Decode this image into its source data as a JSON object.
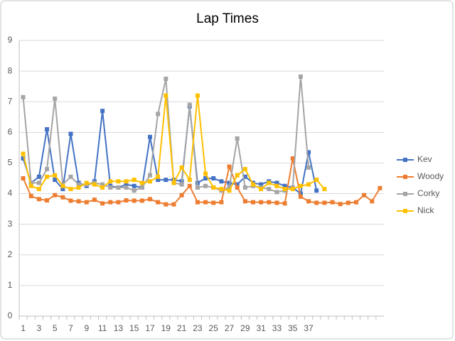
{
  "chart_data": {
    "type": "line",
    "title": "Lap Times",
    "categories": [
      1,
      null,
      3,
      null,
      5,
      null,
      7,
      null,
      9,
      null,
      11,
      null,
      13,
      null,
      15,
      null,
      17,
      null,
      19,
      null,
      21,
      null,
      23,
      null,
      25,
      null,
      27,
      null,
      29,
      null,
      31,
      null,
      33,
      null,
      35,
      null,
      37,
      null,
      null,
      null,
      null,
      null,
      null,
      null,
      null,
      null
    ],
    "ylim": [
      0,
      9
    ],
    "yticks": [
      0,
      1,
      2,
      3,
      4,
      5,
      6,
      7,
      8,
      9
    ],
    "grid": true,
    "legend": "right",
    "series": [
      {
        "name": "Kev",
        "color": "#4472c4",
        "values": [
          5.15,
          4.35,
          4.55,
          6.1,
          4.45,
          4.15,
          5.95,
          4.35,
          4.25,
          4.4,
          6.7,
          4.25,
          4.2,
          4.3,
          4.25,
          4.2,
          5.85,
          4.45,
          4.45,
          4.45,
          4.4,
          6.85,
          4.35,
          4.5,
          4.5,
          4.4,
          4.35,
          4.3,
          4.55,
          4.35,
          4.3,
          4.4,
          4.35,
          4.25,
          4.2,
          4.0,
          5.35,
          4.1,
          null,
          null,
          null,
          null,
          null,
          null,
          null,
          null
        ]
      },
      {
        "name": "Woody",
        "color": "#ed7d31",
        "values": [
          4.5,
          3.92,
          3.82,
          3.78,
          3.95,
          3.88,
          3.77,
          3.75,
          3.72,
          3.8,
          3.68,
          3.72,
          3.72,
          3.78,
          3.77,
          3.77,
          3.82,
          3.72,
          3.65,
          3.65,
          3.95,
          4.25,
          3.72,
          3.72,
          3.7,
          3.72,
          4.88,
          4.2,
          3.75,
          3.72,
          3.72,
          3.72,
          3.7,
          3.68,
          5.15,
          3.9,
          3.75,
          3.7,
          3.7,
          3.72,
          3.66,
          3.7,
          3.72,
          3.95,
          3.75,
          4.18
        ]
      },
      {
        "name": "Corky",
        "color": "#a5a5a5",
        "values": [
          7.15,
          4.35,
          4.35,
          4.8,
          7.1,
          4.3,
          4.55,
          4.3,
          4.3,
          4.35,
          4.3,
          4.2,
          4.2,
          4.2,
          4.1,
          4.2,
          4.6,
          6.6,
          7.75,
          4.35,
          4.3,
          6.9,
          4.2,
          4.25,
          4.2,
          4.1,
          4.2,
          5.8,
          4.2,
          4.25,
          4.2,
          4.15,
          4.05,
          4.1,
          4.2,
          7.82,
          4.85,
          null,
          null,
          null,
          null,
          null,
          null,
          null,
          null,
          null
        ]
      },
      {
        "name": "Nick",
        "color": "#ffc000",
        "values": [
          5.3,
          4.25,
          4.15,
          4.55,
          4.6,
          4.25,
          4.15,
          4.2,
          4.35,
          4.3,
          4.2,
          4.4,
          4.4,
          4.4,
          4.45,
          4.35,
          4.4,
          4.55,
          7.2,
          4.35,
          4.85,
          4.45,
          7.2,
          4.65,
          4.2,
          4.15,
          4.1,
          4.6,
          4.8,
          4.3,
          4.15,
          4.35,
          4.25,
          4.15,
          4.15,
          4.25,
          4.3,
          4.45,
          4.15,
          null,
          null,
          null,
          null,
          null,
          null,
          null
        ]
      }
    ]
  }
}
